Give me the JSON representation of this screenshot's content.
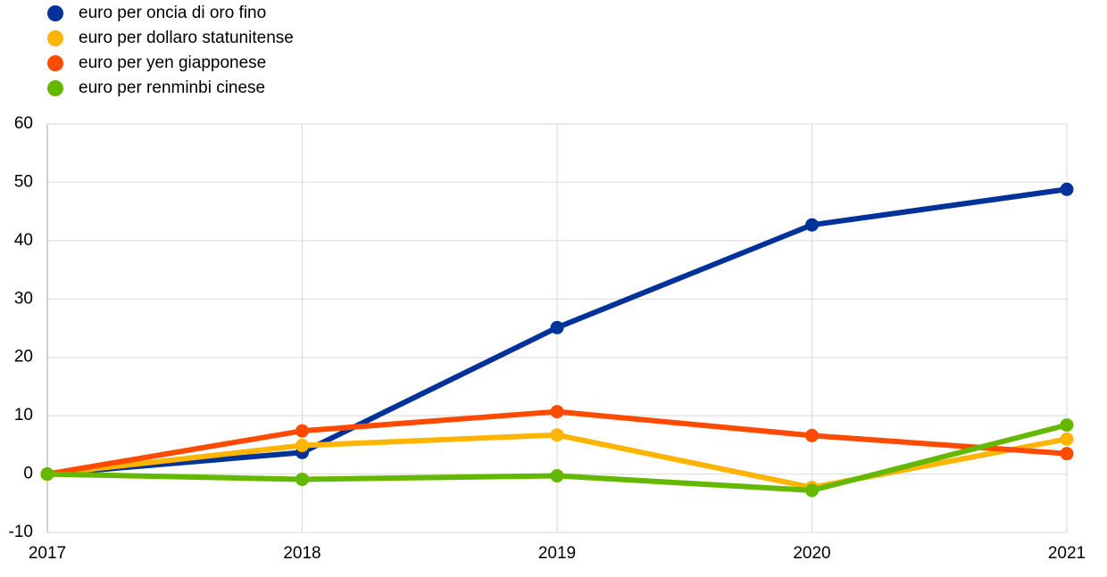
{
  "chart_data": {
    "type": "line",
    "x": [
      2017,
      2018,
      2019,
      2020,
      2021
    ],
    "xlim": [
      2017,
      2021
    ],
    "xticks": [
      2017,
      2018,
      2019,
      2020,
      2021
    ],
    "ylim": [
      -10,
      60
    ],
    "yticks": [
      -10,
      0,
      10,
      20,
      30,
      40,
      50,
      60
    ],
    "grid": true,
    "legend": "top-left",
    "series": [
      {
        "name": "euro per oncia di oro fino",
        "color": "#003299",
        "values": [
          0,
          3.7,
          25.1,
          42.7,
          48.8
        ]
      },
      {
        "name": "euro per dollaro statunitense",
        "color": "#ffb400",
        "values": [
          0,
          4.9,
          6.7,
          -2.3,
          6.0
        ]
      },
      {
        "name": "euro per yen giapponese",
        "color": "#ff4b00",
        "values": [
          0,
          7.4,
          10.7,
          6.6,
          3.5
        ]
      },
      {
        "name": "euro per renminbi cinese",
        "color": "#65b800",
        "values": [
          0,
          -0.9,
          -0.3,
          -2.8,
          8.4
        ]
      }
    ]
  }
}
